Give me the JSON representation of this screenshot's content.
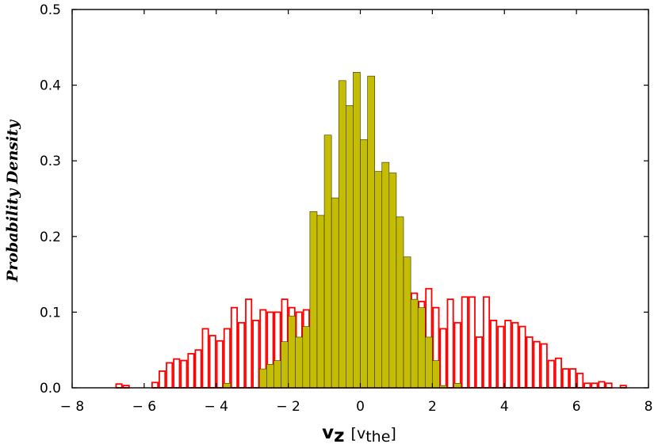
{
  "chart_data": {
    "type": "bar",
    "title": "",
    "xlabel": {
      "symbol": "v",
      "subscript": "z",
      "unit": "v",
      "unit_subscript": "the"
    },
    "ylabel": "Probability Density",
    "xlim": [
      -8,
      8
    ],
    "ylim": [
      0,
      0.5
    ],
    "xticks": [
      -8,
      -6,
      -4,
      -2,
      0,
      2,
      4,
      6,
      8
    ],
    "xtick_labels": [
      "− 8",
      "− 6",
      "− 4",
      "− 2",
      "0",
      "2",
      "4",
      "6",
      "8"
    ],
    "yticks": [
      0.0,
      0.1,
      0.2,
      0.3,
      0.4,
      0.5
    ],
    "ytick_labels": [
      "0.0",
      "0.1",
      "0.2",
      "0.3",
      "0.4",
      "0.5"
    ],
    "grid": false,
    "legend": "none",
    "series": [
      {
        "style": "outline",
        "color": "#ff0000",
        "bins": [
          {
            "x0": -6.8,
            "x1": -6.6,
            "y": 0.005
          },
          {
            "x0": -6.6,
            "x1": -6.4,
            "y": 0.003
          },
          {
            "x0": -5.8,
            "x1": -5.6,
            "y": 0.007
          },
          {
            "x0": -5.6,
            "x1": -5.4,
            "y": 0.022
          },
          {
            "x0": -5.4,
            "x1": -5.2,
            "y": 0.033
          },
          {
            "x0": -5.2,
            "x1": -5.0,
            "y": 0.038
          },
          {
            "x0": -5.0,
            "x1": -4.8,
            "y": 0.036
          },
          {
            "x0": -4.8,
            "x1": -4.6,
            "y": 0.045
          },
          {
            "x0": -4.6,
            "x1": -4.4,
            "y": 0.05
          },
          {
            "x0": -4.4,
            "x1": -4.2,
            "y": 0.078
          },
          {
            "x0": -4.2,
            "x1": -4.0,
            "y": 0.069
          },
          {
            "x0": -4.0,
            "x1": -3.8,
            "y": 0.062
          },
          {
            "x0": -3.8,
            "x1": -3.6,
            "y": 0.078
          },
          {
            "x0": -3.6,
            "x1": -3.4,
            "y": 0.106
          },
          {
            "x0": -3.4,
            "x1": -3.2,
            "y": 0.086
          },
          {
            "x0": -3.2,
            "x1": -3.0,
            "y": 0.117
          },
          {
            "x0": -3.0,
            "x1": -2.8,
            "y": 0.089
          },
          {
            "x0": -2.8,
            "x1": -2.6,
            "y": 0.103
          },
          {
            "x0": -2.6,
            "x1": -2.4,
            "y": 0.1
          },
          {
            "x0": -2.4,
            "x1": -2.2,
            "y": 0.1
          },
          {
            "x0": -2.2,
            "x1": -2.0,
            "y": 0.117
          },
          {
            "x0": -2.0,
            "x1": -1.8,
            "y": 0.106
          },
          {
            "x0": -1.8,
            "x1": -1.6,
            "y": 0.1
          },
          {
            "x0": -1.6,
            "x1": -1.4,
            "y": 0.103
          },
          {
            "x0": -1.4,
            "x1": -1.2,
            "y": 0.125
          },
          {
            "x0": -1.2,
            "x1": -1.0,
            "y": 0.109
          },
          {
            "x0": -1.0,
            "x1": -0.8,
            "y": 0.109
          },
          {
            "x0": -0.8,
            "x1": -0.6,
            "y": 0.136
          },
          {
            "x0": -0.6,
            "x1": -0.4,
            "y": 0.131
          },
          {
            "x0": -0.4,
            "x1": -0.2,
            "y": 0.111
          },
          {
            "x0": -0.2,
            "x1": 0.0,
            "y": 0.128
          },
          {
            "x0": 0.0,
            "x1": 0.2,
            "y": 0.1
          },
          {
            "x0": 0.2,
            "x1": 0.4,
            "y": 0.097
          },
          {
            "x0": 0.4,
            "x1": 0.6,
            "y": 0.153
          },
          {
            "x0": 0.6,
            "x1": 0.8,
            "y": 0.128
          },
          {
            "x0": 0.8,
            "x1": 1.0,
            "y": 0.114
          },
          {
            "x0": 1.0,
            "x1": 1.2,
            "y": 0.117
          },
          {
            "x0": 1.2,
            "x1": 1.4,
            "y": 0.109
          },
          {
            "x0": 1.4,
            "x1": 1.6,
            "y": 0.125
          },
          {
            "x0": 1.6,
            "x1": 1.8,
            "y": 0.114
          },
          {
            "x0": 1.8,
            "x1": 2.0,
            "y": 0.131
          },
          {
            "x0": 2.0,
            "x1": 2.2,
            "y": 0.106
          },
          {
            "x0": 2.2,
            "x1": 2.4,
            "y": 0.078
          },
          {
            "x0": 2.4,
            "x1": 2.6,
            "y": 0.117
          },
          {
            "x0": 2.6,
            "x1": 2.8,
            "y": 0.086
          },
          {
            "x0": 2.8,
            "x1": 3.0,
            "y": 0.12
          },
          {
            "x0": 3.0,
            "x1": 3.2,
            "y": 0.12
          },
          {
            "x0": 3.2,
            "x1": 3.4,
            "y": 0.067
          },
          {
            "x0": 3.4,
            "x1": 3.6,
            "y": 0.12
          },
          {
            "x0": 3.6,
            "x1": 3.8,
            "y": 0.089
          },
          {
            "x0": 3.8,
            "x1": 4.0,
            "y": 0.081
          },
          {
            "x0": 4.0,
            "x1": 4.2,
            "y": 0.089
          },
          {
            "x0": 4.2,
            "x1": 4.4,
            "y": 0.086
          },
          {
            "x0": 4.4,
            "x1": 4.6,
            "y": 0.081
          },
          {
            "x0": 4.6,
            "x1": 4.8,
            "y": 0.067
          },
          {
            "x0": 4.8,
            "x1": 5.0,
            "y": 0.061
          },
          {
            "x0": 5.0,
            "x1": 5.2,
            "y": 0.058
          },
          {
            "x0": 5.2,
            "x1": 5.4,
            "y": 0.036
          },
          {
            "x0": 5.4,
            "x1": 5.6,
            "y": 0.039
          },
          {
            "x0": 5.6,
            "x1": 5.8,
            "y": 0.025
          },
          {
            "x0": 5.8,
            "x1": 6.0,
            "y": 0.025
          },
          {
            "x0": 6.0,
            "x1": 6.2,
            "y": 0.019
          },
          {
            "x0": 6.2,
            "x1": 6.4,
            "y": 0.006
          },
          {
            "x0": 6.4,
            "x1": 6.6,
            "y": 0.006
          },
          {
            "x0": 6.6,
            "x1": 6.8,
            "y": 0.008
          },
          {
            "x0": 6.8,
            "x1": 7.0,
            "y": 0.006
          },
          {
            "x0": 7.2,
            "x1": 7.4,
            "y": 0.003
          }
        ]
      },
      {
        "style": "filled",
        "color": "#c5bd05",
        "edgecolor": "#333300",
        "bins": [
          {
            "x0": -3.8,
            "x1": -3.6,
            "y": 0.006
          },
          {
            "x0": -2.8,
            "x1": -2.6,
            "y": 0.025
          },
          {
            "x0": -2.6,
            "x1": -2.4,
            "y": 0.031
          },
          {
            "x0": -2.4,
            "x1": -2.2,
            "y": 0.036
          },
          {
            "x0": -2.2,
            "x1": -2.0,
            "y": 0.061
          },
          {
            "x0": -2.0,
            "x1": -1.8,
            "y": 0.095
          },
          {
            "x0": -1.8,
            "x1": -1.6,
            "y": 0.067
          },
          {
            "x0": -1.6,
            "x1": -1.4,
            "y": 0.081
          },
          {
            "x0": -1.4,
            "x1": -1.2,
            "y": 0.233
          },
          {
            "x0": -1.2,
            "x1": -1.0,
            "y": 0.228
          },
          {
            "x0": -1.0,
            "x1": -0.8,
            "y": 0.334
          },
          {
            "x0": -0.8,
            "x1": -0.6,
            "y": 0.251
          },
          {
            "x0": -0.6,
            "x1": -0.4,
            "y": 0.406
          },
          {
            "x0": -0.4,
            "x1": -0.2,
            "y": 0.373
          },
          {
            "x0": -0.2,
            "x1": 0.0,
            "y": 0.417
          },
          {
            "x0": 0.0,
            "x1": 0.2,
            "y": 0.328
          },
          {
            "x0": 0.2,
            "x1": 0.4,
            "y": 0.412
          },
          {
            "x0": 0.4,
            "x1": 0.6,
            "y": 0.286
          },
          {
            "x0": 0.6,
            "x1": 0.8,
            "y": 0.298
          },
          {
            "x0": 0.8,
            "x1": 1.0,
            "y": 0.284
          },
          {
            "x0": 1.0,
            "x1": 1.2,
            "y": 0.226
          },
          {
            "x0": 1.2,
            "x1": 1.4,
            "y": 0.173
          },
          {
            "x0": 1.4,
            "x1": 1.6,
            "y": 0.117
          },
          {
            "x0": 1.6,
            "x1": 1.8,
            "y": 0.106
          },
          {
            "x0": 1.8,
            "x1": 2.0,
            "y": 0.067
          },
          {
            "x0": 2.0,
            "x1": 2.2,
            "y": 0.036
          },
          {
            "x0": 2.2,
            "x1": 2.4,
            "y": 0.003
          },
          {
            "x0": 2.6,
            "x1": 2.8,
            "y": 0.006
          }
        ]
      }
    ]
  }
}
